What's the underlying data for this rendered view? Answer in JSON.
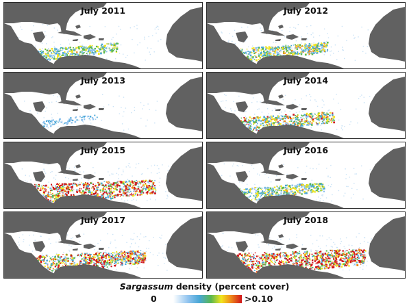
{
  "panels": [
    {
      "title": "July 2011",
      "extent": 0.35
    },
    {
      "title": "July 2012",
      "extent": 0.45
    },
    {
      "title": "July 2013",
      "extent": 0.05
    },
    {
      "title": "July 2014",
      "extent": 0.55
    },
    {
      "title": "July 2015",
      "extent": 0.9
    },
    {
      "title": "July 2016",
      "extent": 0.4
    },
    {
      "title": "July 2017",
      "extent": 0.75
    },
    {
      "title": "July 2018",
      "extent": 1.0
    }
  ],
  "legend": {
    "title_italic": "Sargassum",
    "title_rest": " density (percent cover)",
    "min_label": "0",
    "max_label": ">0.10",
    "colors": [
      "#ffffff",
      "#8fc3ef",
      "#49a7d6",
      "#5ab850",
      "#f2e51f",
      "#ef8a1b",
      "#d0161b"
    ]
  },
  "colors": {
    "land": "#616161",
    "ocean": "#ffffff",
    "border": "#2b2b2b"
  }
}
